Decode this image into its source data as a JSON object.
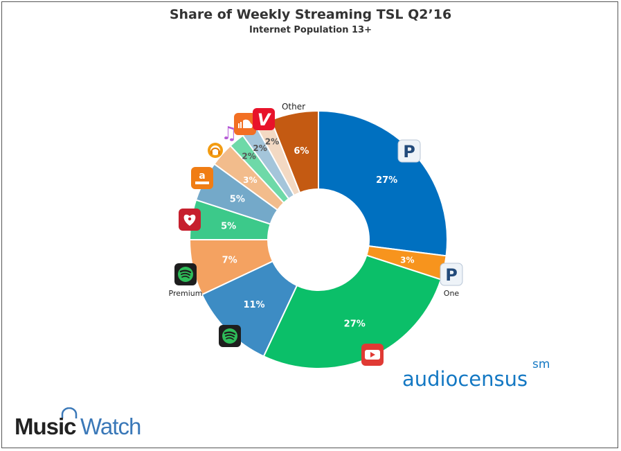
{
  "chart_data": {
    "type": "pie",
    "title": "Share of Weekly Streaming TSL Q2’16",
    "subtitle": "Internet Population 13+",
    "slices": [
      {
        "label": "27%",
        "value": 27,
        "color": "#0070c0",
        "icon": "pandora-icon"
      },
      {
        "label": "3%",
        "value": 3,
        "color": "#f7941d",
        "icon": "pandora-one-icon",
        "caption": "One"
      },
      {
        "label": "27%",
        "value": 27,
        "color": "#0bbf69",
        "icon": "youtube-icon"
      },
      {
        "label": "11%",
        "value": 11,
        "color": "#3d8cc4",
        "icon": "spotify-free-icon"
      },
      {
        "label": "7%",
        "value": 7,
        "color": "#f4a261",
        "icon": "spotify-premium-icon",
        "caption": "Premium"
      },
      {
        "label": "5%",
        "value": 5,
        "color": "#3cc98a",
        "icon": "iheartradio-icon"
      },
      {
        "label": "5%",
        "value": 5,
        "color": "#74a9c9",
        "icon": "amazon-music-icon"
      },
      {
        "label": "3%",
        "value": 3,
        "color": "#f2bc8c",
        "icon": "google-play-music-icon"
      },
      {
        "label": "2%",
        "value": 2,
        "color": "#6ed9a8",
        "icon": "apple-music-icon"
      },
      {
        "label": "2%",
        "value": 2,
        "color": "#a4c5da",
        "icon": "soundcloud-icon"
      },
      {
        "label": "2%",
        "value": 2,
        "color": "#f3d9c3",
        "icon": "vevo-icon"
      },
      {
        "label": "6%",
        "value": 6,
        "color": "#c45a12",
        "icon": "",
        "caption": "Other"
      }
    ]
  },
  "branding": {
    "audiocensus": "audiocensus",
    "audiocensus_mark": "sm",
    "musicwatch_part1": "Music",
    "musicwatch_part2": "Watch"
  }
}
